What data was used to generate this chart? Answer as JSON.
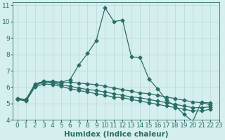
{
  "title": "",
  "xlabel": "Humidex (Indice chaleur)",
  "ylabel": "",
  "bg_color": "#d5eeee",
  "line_color": "#2a6e65",
  "grid_color": "#b8d8d8",
  "xlim": [
    -0.5,
    23
  ],
  "ylim": [
    4,
    11.2
  ],
  "yticks": [
    4,
    5,
    6,
    7,
    8,
    9,
    10,
    11
  ],
  "xticks": [
    0,
    1,
    2,
    3,
    4,
    5,
    6,
    7,
    8,
    9,
    10,
    11,
    12,
    13,
    14,
    15,
    16,
    17,
    18,
    19,
    20,
    21,
    22,
    23
  ],
  "lines": [
    [
      5.3,
      5.25,
      6.2,
      6.35,
      6.35,
      6.3,
      6.45,
      7.35,
      8.05,
      8.85,
      10.85,
      10.0,
      10.1,
      7.85,
      7.8,
      6.5,
      5.9,
      5.2,
      4.85,
      4.35,
      3.9,
      5.1,
      4.9
    ],
    [
      5.3,
      5.25,
      6.15,
      6.35,
      6.3,
      6.25,
      6.3,
      6.25,
      6.2,
      6.15,
      6.05,
      5.95,
      5.85,
      5.75,
      5.65,
      5.6,
      5.5,
      5.4,
      5.3,
      5.2,
      5.1,
      5.05,
      5.05
    ],
    [
      5.3,
      5.2,
      6.1,
      6.3,
      6.25,
      6.15,
      6.05,
      5.95,
      5.85,
      5.8,
      5.7,
      5.6,
      5.5,
      5.4,
      5.35,
      5.25,
      5.15,
      5.05,
      4.95,
      4.85,
      4.75,
      4.75,
      4.8
    ],
    [
      5.25,
      5.15,
      6.0,
      6.2,
      6.15,
      6.05,
      5.9,
      5.8,
      5.7,
      5.6,
      5.5,
      5.4,
      5.35,
      5.25,
      5.15,
      5.05,
      4.95,
      4.85,
      4.75,
      4.65,
      4.55,
      4.55,
      4.65
    ]
  ],
  "marker": "D",
  "marker_size": 2.5,
  "line_width": 0.9,
  "tick_fontsize": 6.5,
  "xlabel_fontsize": 7.5
}
